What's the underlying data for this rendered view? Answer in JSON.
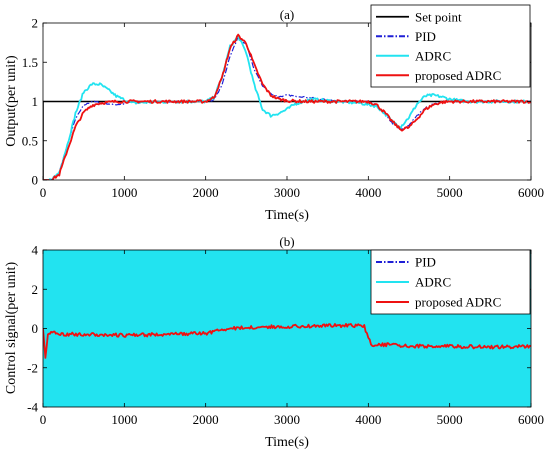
{
  "chart_data": [
    {
      "type": "line",
      "title": "(a)",
      "xlabel": "Time(s)",
      "ylabel": "Output(per unit)",
      "xlim": [
        0,
        6000
      ],
      "ylim": [
        0,
        2
      ],
      "xticks": [
        0,
        1000,
        2000,
        3000,
        4000,
        5000,
        6000
      ],
      "yticks": [
        0,
        0.5,
        1,
        1.5,
        2
      ],
      "ytick_labels": [
        "0",
        "0.5",
        "1",
        "1.5",
        "2"
      ],
      "legend": "top-right",
      "series": [
        {
          "name": "Set point",
          "color": "#000000",
          "style": "solid",
          "x": [
            0,
            0,
            6000
          ],
          "y": [
            0,
            1,
            1
          ]
        },
        {
          "name": "PID",
          "color": "#1f1fd6",
          "style": "dashdot",
          "x": [
            0,
            100,
            200,
            300,
            400,
            500,
            600,
            700,
            800,
            900,
            1000,
            1100,
            2000,
            2100,
            2200,
            2300,
            2400,
            2500,
            2600,
            2700,
            2800,
            2900,
            3000,
            3200,
            3500,
            3800,
            4000,
            4100,
            4200,
            4300,
            4400,
            4500,
            4600,
            4700,
            4800,
            4900,
            5000,
            5200,
            5500,
            6000
          ],
          "y": [
            0,
            0,
            0.1,
            0.45,
            0.78,
            0.95,
            1.0,
            0.99,
            0.97,
            0.96,
            0.97,
            1.0,
            1.0,
            1.02,
            1.2,
            1.58,
            1.82,
            1.72,
            1.4,
            1.2,
            1.1,
            1.06,
            1.08,
            1.06,
            1.02,
            1.0,
            1.0,
            0.95,
            0.84,
            0.72,
            0.64,
            0.7,
            0.82,
            0.92,
            0.97,
            0.99,
            1.0,
            1.0,
            1.0,
            1.0
          ]
        },
        {
          "name": "ADRC",
          "color": "#22e3f0",
          "style": "solid",
          "x": [
            0,
            100,
            200,
            300,
            400,
            500,
            600,
            700,
            800,
            900,
            1000,
            1100,
            1300,
            1600,
            2000,
            2100,
            2200,
            2300,
            2400,
            2500,
            2600,
            2700,
            2800,
            2900,
            3000,
            3100,
            3300,
            3600,
            3900,
            4100,
            4200,
            4300,
            4400,
            4500,
            4600,
            4700,
            4800,
            4900,
            5000,
            5200,
            5500,
            6000
          ],
          "y": [
            0,
            0,
            0.1,
            0.45,
            0.85,
            1.12,
            1.22,
            1.22,
            1.15,
            1.07,
            1.02,
            0.98,
            0.99,
            1.0,
            1.0,
            1.05,
            1.3,
            1.7,
            1.83,
            1.62,
            1.2,
            0.9,
            0.82,
            0.85,
            0.9,
            0.97,
            1.03,
            1.0,
            0.98,
            0.94,
            0.85,
            0.74,
            0.68,
            0.8,
            0.97,
            1.07,
            1.08,
            1.06,
            1.03,
            1.0,
            1.0,
            1.0
          ]
        },
        {
          "name": "proposed ADRC",
          "color": "#ee1111",
          "style": "solid",
          "x": [
            0,
            100,
            200,
            300,
            400,
            500,
            600,
            700,
            800,
            900,
            1000,
            1200,
            1500,
            2000,
            2100,
            2200,
            2300,
            2400,
            2500,
            2600,
            2700,
            2800,
            2900,
            3000,
            3200,
            3500,
            3800,
            4000,
            4100,
            4200,
            4300,
            4400,
            4500,
            4600,
            4700,
            4800,
            4900,
            5000,
            5200,
            5500,
            6000
          ],
          "y": [
            0,
            0,
            0.07,
            0.38,
            0.68,
            0.86,
            0.95,
            0.98,
            0.99,
            1.0,
            1.0,
            1.0,
            1.0,
            1.0,
            1.05,
            1.3,
            1.68,
            1.84,
            1.74,
            1.46,
            1.22,
            1.08,
            1.03,
            1.01,
            1.0,
            1.0,
            1.0,
            1.0,
            0.96,
            0.86,
            0.74,
            0.64,
            0.67,
            0.78,
            0.9,
            0.96,
            0.99,
            1.0,
            1.0,
            1.0,
            1.0
          ]
        }
      ]
    },
    {
      "type": "line",
      "title": "(b)",
      "xlabel": "Time(s)",
      "ylabel": "Control signal(per unit)",
      "xlim": [
        0,
        6000
      ],
      "ylim": [
        -4,
        4
      ],
      "xticks": [
        0,
        1000,
        2000,
        3000,
        4000,
        5000,
        6000
      ],
      "yticks": [
        -4,
        -2,
        0,
        2,
        4
      ],
      "ytick_labels": [
        "-4",
        "-2",
        "0",
        "2",
        "4"
      ],
      "legend": "top-right",
      "series": [
        {
          "name": "PID",
          "color": "#1f1fd6",
          "style": "dashdot",
          "x": [
            0,
            6000
          ],
          "y": [
            0,
            0
          ]
        },
        {
          "name": "ADRC",
          "color": "#22e3f0",
          "style": "band",
          "x": [
            0,
            6000
          ],
          "y_min": [
            -4,
            -4
          ],
          "y_max": [
            4,
            4
          ]
        },
        {
          "name": "proposed ADRC",
          "color": "#ee1111",
          "style": "solid",
          "x": [
            0,
            30,
            60,
            100,
            300,
            600,
            1000,
            1500,
            2000,
            2200,
            2500,
            3000,
            3500,
            3950,
            4000,
            4050,
            4100,
            4500,
            5000,
            5500,
            6000
          ],
          "y": [
            0,
            -1.5,
            -0.3,
            -0.2,
            -0.3,
            -0.3,
            -0.35,
            -0.3,
            -0.25,
            -0.05,
            0.05,
            0.1,
            0.15,
            0.15,
            -0.5,
            -0.9,
            -0.8,
            -0.9,
            -0.9,
            -0.95,
            -0.9
          ]
        }
      ]
    }
  ]
}
